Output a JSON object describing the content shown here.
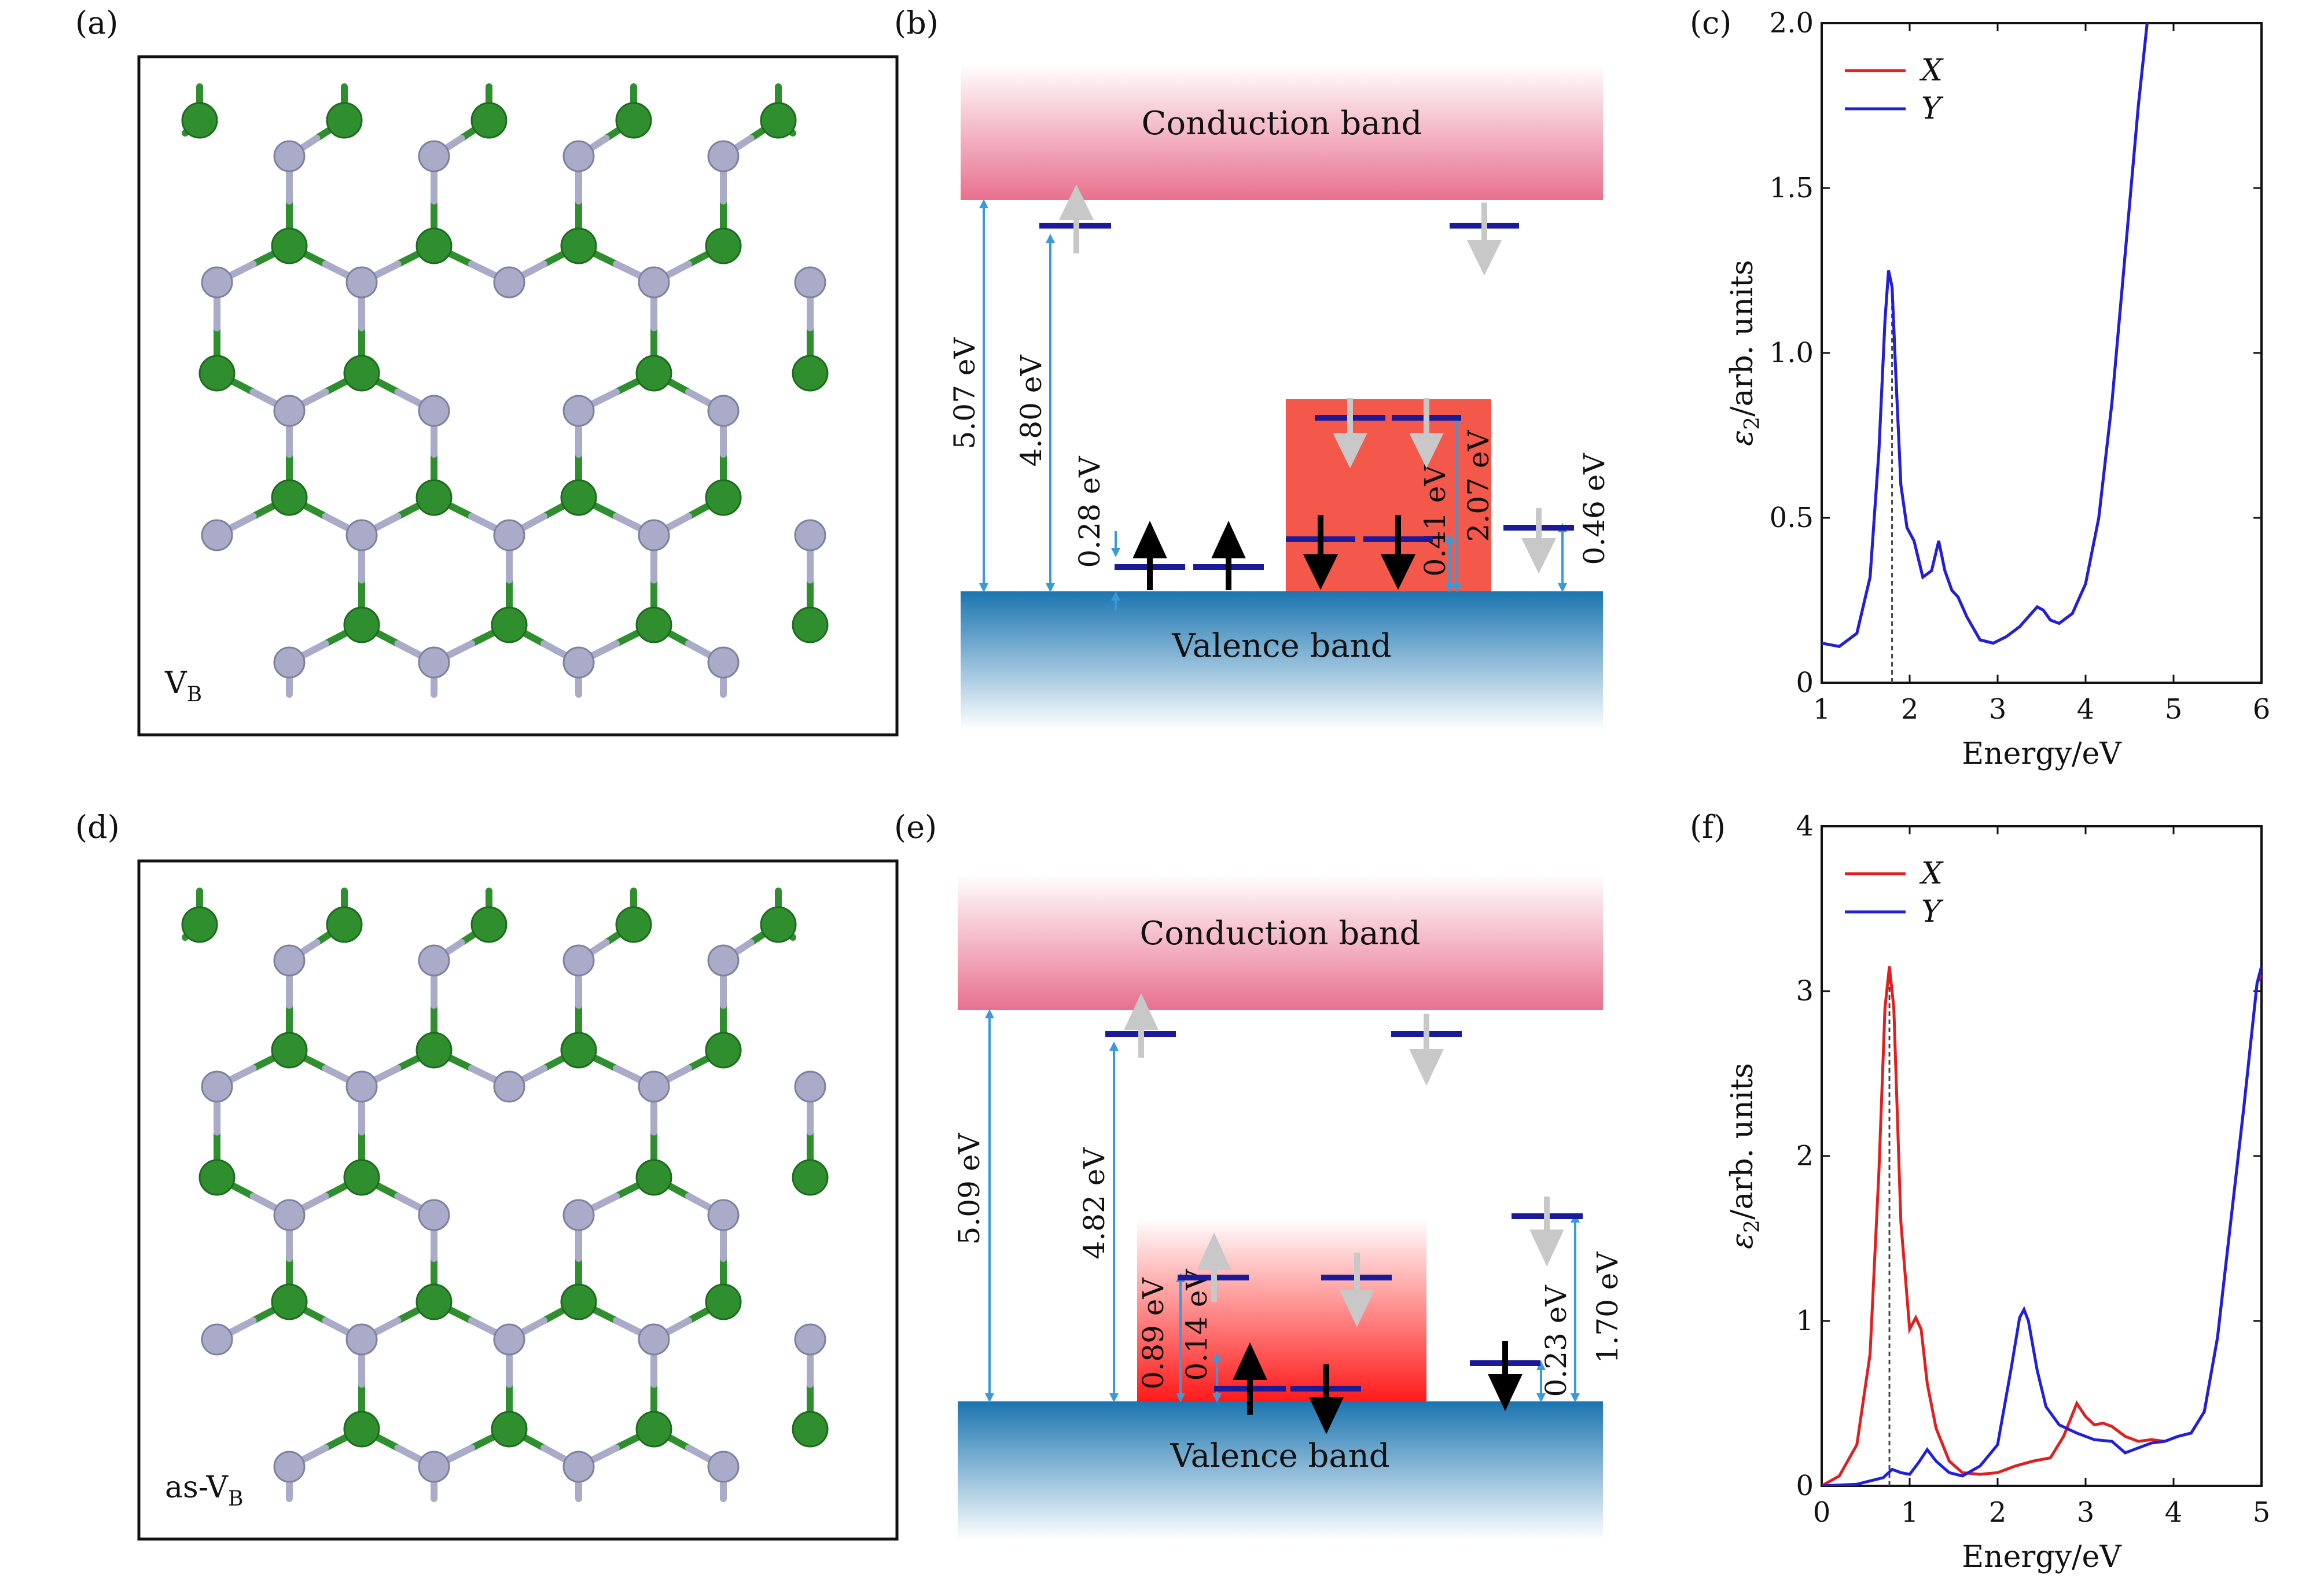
{
  "panels": {
    "a": {
      "label": "(a)",
      "tag_main": "V",
      "tag_sub": "B"
    },
    "b": {
      "label": "(b)"
    },
    "c": {
      "label": "(c)"
    },
    "d": {
      "label": "(d)",
      "tag_main": "as-V",
      "tag_sub": "B"
    },
    "e": {
      "label": "(e)"
    },
    "f": {
      "label": "(f)"
    }
  },
  "bands": {
    "conduction": "Conduction band",
    "valence": "Valence band"
  },
  "energy_labels_b": [
    "5.07 eV",
    "4.80 eV",
    "0.28 eV",
    "0.41 eV",
    "2.07 eV",
    "0.46 eV"
  ],
  "energy_labels_e": [
    "5.09 eV",
    "4.82 eV",
    "0.89 eV",
    "0.14 eV",
    "0.23 eV",
    "1.70 eV"
  ],
  "colors": {
    "boron": "#2f8f2f",
    "nitrogen": "#a9abc9",
    "level": "#1b1b9a",
    "arrow_measure": "#3a9ad9",
    "spin_dark": "#000000",
    "spin_light": "#c8c8c8",
    "cb_top": "#ffffff",
    "cb_bottom": "#e8708e",
    "vb_top": "#1b75b0",
    "defect_b": "#f3584a",
    "defect_e": "#ff2020",
    "series_x": "#e02020",
    "series_y": "#2020d8"
  },
  "chart_data": [
    {
      "panel": "c",
      "type": "line",
      "xlabel": "Energy/eV",
      "ylabel_main": "ε",
      "ylabel_sub": "2",
      "ylabel_rest": "/arb. units",
      "xlim": [
        1,
        6
      ],
      "ylim": [
        0,
        2
      ],
      "xticks": [
        "1",
        "2",
        "3",
        "4",
        "5",
        "6"
      ],
      "yticks": [
        "0",
        "0.5",
        "1.0",
        "1.5",
        "2.0"
      ],
      "xtick_values": [
        1,
        2,
        3,
        4,
        5,
        6
      ],
      "ytick_values": [
        0,
        0.5,
        1.0,
        1.5,
        2.0
      ],
      "legend_position": "top-left",
      "marker_x": 1.8,
      "series": [
        {
          "name": "X",
          "color": "#e02020",
          "x": [
            1.0,
            1.2,
            1.4,
            1.55,
            1.65,
            1.72,
            1.76,
            1.8,
            1.84,
            1.9,
            1.97,
            2.05,
            2.15,
            2.25,
            2.33,
            2.4,
            2.48,
            2.55,
            2.65,
            2.8,
            2.95,
            3.1,
            3.25,
            3.35,
            3.45,
            3.52,
            3.6,
            3.7,
            3.85,
            4.0,
            4.15,
            4.3,
            4.45,
            4.6,
            4.7,
            4.75
          ],
          "y": [
            0.12,
            0.11,
            0.15,
            0.32,
            0.7,
            1.1,
            1.25,
            1.2,
            0.95,
            0.6,
            0.47,
            0.43,
            0.32,
            0.34,
            0.43,
            0.34,
            0.28,
            0.26,
            0.2,
            0.13,
            0.12,
            0.14,
            0.17,
            0.2,
            0.23,
            0.22,
            0.19,
            0.18,
            0.21,
            0.3,
            0.5,
            0.85,
            1.3,
            1.75,
            2.0,
            2.05
          ]
        },
        {
          "name": "Y",
          "color": "#2020d8",
          "x": [
            1.0,
            1.2,
            1.4,
            1.55,
            1.65,
            1.72,
            1.76,
            1.8,
            1.84,
            1.9,
            1.97,
            2.05,
            2.15,
            2.25,
            2.33,
            2.4,
            2.48,
            2.55,
            2.65,
            2.8,
            2.95,
            3.1,
            3.25,
            3.35,
            3.45,
            3.52,
            3.6,
            3.7,
            3.85,
            4.0,
            4.15,
            4.3,
            4.45,
            4.6,
            4.7,
            4.75
          ],
          "y": [
            0.12,
            0.11,
            0.15,
            0.32,
            0.7,
            1.1,
            1.25,
            1.2,
            0.95,
            0.6,
            0.47,
            0.43,
            0.32,
            0.34,
            0.43,
            0.34,
            0.28,
            0.26,
            0.2,
            0.13,
            0.12,
            0.14,
            0.17,
            0.2,
            0.23,
            0.22,
            0.19,
            0.18,
            0.21,
            0.3,
            0.5,
            0.85,
            1.3,
            1.75,
            2.0,
            2.05
          ]
        }
      ]
    },
    {
      "panel": "f",
      "type": "line",
      "xlabel": "Energy/eV",
      "ylabel_main": "ε",
      "ylabel_sub": "2",
      "ylabel_rest": "/arb. units",
      "xlim": [
        0,
        5
      ],
      "ylim": [
        0,
        4
      ],
      "xticks": [
        "0",
        "1",
        "2",
        "3",
        "4",
        "5"
      ],
      "yticks": [
        "0",
        "1",
        "2",
        "3",
        "4"
      ],
      "xtick_values": [
        0,
        1,
        2,
        3,
        4,
        5
      ],
      "ytick_values": [
        0,
        1,
        2,
        3,
        4
      ],
      "legend_position": "top-left",
      "marker_x": 0.77,
      "series": [
        {
          "name": "X",
          "color": "#e02020",
          "x": [
            0.0,
            0.2,
            0.4,
            0.55,
            0.65,
            0.72,
            0.77,
            0.82,
            0.9,
            1.0,
            1.07,
            1.13,
            1.2,
            1.3,
            1.45,
            1.6,
            1.8,
            2.0,
            2.2,
            2.4,
            2.6,
            2.75,
            2.9,
            3.0,
            3.1,
            3.2,
            3.3,
            3.45,
            3.6,
            3.75,
            3.9,
            4.05,
            4.2,
            4.35,
            4.5,
            4.65,
            4.8,
            4.95,
            5.0
          ],
          "y": [
            0.0,
            0.06,
            0.25,
            0.8,
            1.9,
            2.9,
            3.15,
            2.9,
            1.6,
            0.95,
            1.02,
            0.95,
            0.62,
            0.35,
            0.15,
            0.08,
            0.07,
            0.08,
            0.12,
            0.15,
            0.17,
            0.3,
            0.5,
            0.42,
            0.37,
            0.38,
            0.36,
            0.3,
            0.27,
            0.28,
            0.27,
            0.3,
            0.32,
            0.45,
            0.9,
            1.6,
            2.3,
            3.05,
            3.1
          ]
        },
        {
          "name": "Y",
          "color": "#2020d8",
          "x": [
            0.0,
            0.4,
            0.7,
            0.8,
            0.9,
            1.0,
            1.1,
            1.2,
            1.3,
            1.45,
            1.6,
            1.8,
            2.0,
            2.15,
            2.25,
            2.3,
            2.35,
            2.45,
            2.55,
            2.7,
            2.9,
            3.1,
            3.3,
            3.45,
            3.6,
            3.75,
            3.9,
            4.05,
            4.2,
            4.35,
            4.5,
            4.65,
            4.8,
            4.95,
            5.0
          ],
          "y": [
            0.0,
            0.01,
            0.05,
            0.1,
            0.08,
            0.07,
            0.14,
            0.22,
            0.15,
            0.08,
            0.06,
            0.12,
            0.25,
            0.7,
            1.02,
            1.07,
            1.0,
            0.7,
            0.48,
            0.37,
            0.32,
            0.28,
            0.27,
            0.2,
            0.23,
            0.26,
            0.27,
            0.3,
            0.32,
            0.45,
            0.9,
            1.6,
            2.3,
            3.05,
            3.15
          ]
        }
      ]
    }
  ]
}
